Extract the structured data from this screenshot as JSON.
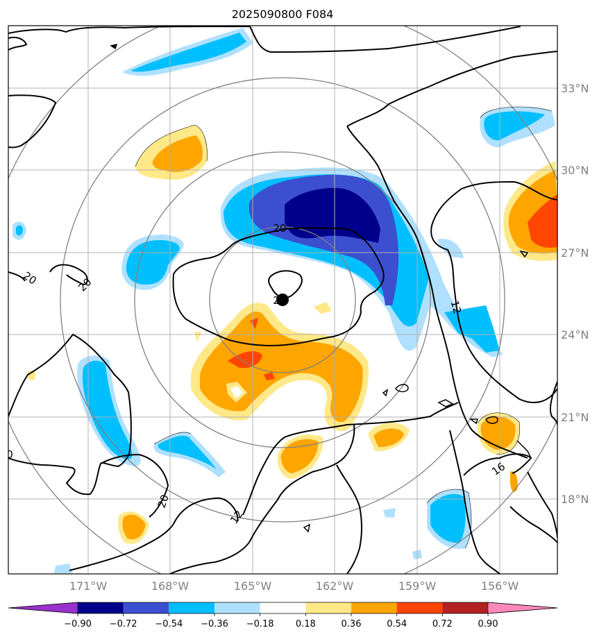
{
  "title": "2025090800 F084",
  "latitude_labels": [
    "33°N",
    "30°N",
    "27°N",
    "24°N",
    "21°N",
    "18°N"
  ],
  "longitude_labels": [
    "171°W",
    "168°W",
    "165°W",
    "162°W",
    "159°W",
    "156°W"
  ],
  "contour_labels": [
    "20",
    "20",
    "20",
    "20",
    "2",
    "12",
    "12",
    "16",
    "20",
    "0"
  ],
  "colorbar": {
    "ticks": [
      "−0.90",
      "−0.72",
      "−0.54",
      "−0.36",
      "−0.18",
      "0.18",
      "0.36",
      "0.54",
      "0.72",
      "0.90"
    ],
    "colors": [
      "#9932cc",
      "#00008b",
      "#3b4fcf",
      "#00bfff",
      "#b0e0ff",
      "#ffffff",
      "#ffe888",
      "#ffa500",
      "#ff4500",
      "#b22222",
      "#ff88bb"
    ]
  },
  "colors": {
    "grid": "#b0b0b0",
    "range_rings": "#808080",
    "contours": "#000000",
    "storm_center": "#000000"
  }
}
